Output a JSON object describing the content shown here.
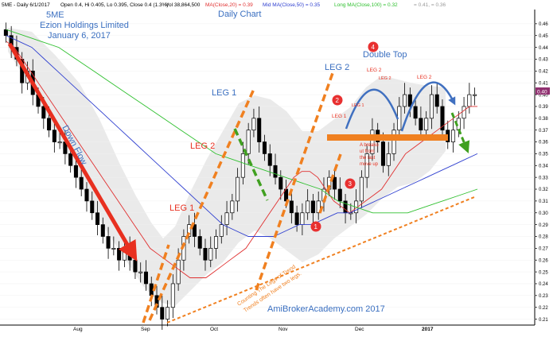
{
  "header": {
    "ticker": "5ME - Daily 6/1/2017",
    "ohlc": "Open 0.4, Hi 0.405, Lo 0.395, Close 0.4 (1.3%)",
    "vol": "Vol 38,864,500",
    "ma20": "MA(Close,20) = 0.39",
    "ma50": "Mid MA(Close,50) = 0.35",
    "ma100": "Long MA(Close,100) = 0.32",
    "bands": "= 0.41, = 0.36"
  },
  "titles": {
    "symbol": "5ME",
    "company": "Ezion Holdings Limited",
    "date": "January 6, 2017",
    "chart": "Daily Chart"
  },
  "annotations": {
    "down_flow": "Down Flow",
    "leg1_left": "LEG 1",
    "leg2_left": "LEG 2",
    "leg1_mid": "LEG 1",
    "leg2_right": "LEG 2",
    "double_top": "Double Top",
    "leg1_small": "LEG 1",
    "leg2_small_a": "LEG 2",
    "leg2_small_b": "LEG 2",
    "leg1_small_b": "LEG 1",
    "leg2_top_right": "LEG 2",
    "breakout": [
      "A breako",
      "ut from",
      "the last",
      "move up"
    ],
    "counting": [
      "Counting The Legs of Trend",
      "Trends often have two legs."
    ],
    "website": "AmiBrokerAcademy.com  2017",
    "circles": [
      "1",
      "2",
      "3",
      "4"
    ]
  },
  "colors": {
    "candle": "#000000",
    "ma20": "#e03030",
    "ma50": "#3040d0",
    "ma100": "#30c030",
    "band": "#d0d0d0",
    "orange": "#f08020",
    "green_arrow": "#40a020",
    "red_arrow": "#e83020",
    "blue_curve": "#4070c0",
    "price_tag": "#903070"
  },
  "chart_data": {
    "type": "candlestick",
    "title": "Daily Chart",
    "y_axis": {
      "ticks": [
        0.46,
        0.45,
        0.44,
        0.43,
        0.42,
        0.41,
        0.4,
        0.39,
        0.38,
        0.37,
        0.36,
        0.35,
        0.34,
        0.33,
        0.32,
        0.31,
        0.3,
        0.29,
        0.28,
        0.27,
        0.26,
        0.25,
        0.24,
        0.23,
        0.22,
        0.21
      ],
      "ylim": [
        0.205,
        0.47
      ],
      "current_price_tag": "0.40"
    },
    "x_axis": {
      "labels": [
        "Aug",
        "Sep",
        "Oct",
        "Nov",
        "Dec",
        "2017"
      ]
    },
    "close_path": [
      0.45,
      0.44,
      0.43,
      0.41,
      0.42,
      0.4,
      0.39,
      0.38,
      0.37,
      0.36,
      0.36,
      0.35,
      0.34,
      0.33,
      0.32,
      0.31,
      0.3,
      0.29,
      0.28,
      0.27,
      0.27,
      0.26,
      0.27,
      0.26,
      0.25,
      0.25,
      0.24,
      0.23,
      0.22,
      0.21,
      0.22,
      0.24,
      0.26,
      0.28,
      0.29,
      0.28,
      0.27,
      0.26,
      0.27,
      0.28,
      0.29,
      0.3,
      0.31,
      0.33,
      0.35,
      0.37,
      0.38,
      0.36,
      0.35,
      0.34,
      0.33,
      0.32,
      0.31,
      0.3,
      0.29,
      0.3,
      0.31,
      0.3,
      0.31,
      0.32,
      0.33,
      0.32,
      0.31,
      0.3,
      0.3,
      0.31,
      0.33,
      0.35,
      0.37,
      0.36,
      0.34,
      0.35,
      0.37,
      0.39,
      0.4,
      0.39,
      0.38,
      0.37,
      0.38,
      0.4,
      0.39,
      0.37,
      0.36,
      0.37,
      0.38,
      0.39,
      0.4,
      0.4
    ],
    "series": [
      {
        "name": "MA(Close,20)",
        "values": [
          0.445,
          0.44,
          0.43,
          0.42,
          0.41,
          0.4,
          0.39,
          0.38,
          0.37,
          0.36,
          0.35,
          0.34,
          0.33,
          0.32,
          0.31,
          0.3,
          0.29,
          0.28,
          0.27,
          0.265,
          0.26,
          0.255,
          0.25,
          0.245,
          0.245,
          0.245,
          0.25,
          0.255,
          0.26,
          0.265,
          0.27,
          0.28,
          0.29,
          0.3,
          0.31,
          0.32,
          0.33,
          0.335,
          0.335,
          0.33,
          0.32,
          0.31,
          0.305,
          0.3,
          0.305,
          0.31,
          0.315,
          0.32,
          0.33,
          0.34,
          0.35,
          0.355,
          0.36,
          0.365,
          0.37,
          0.375,
          0.38,
          0.385,
          0.39,
          0.39
        ]
      },
      {
        "name": "Mid MA(Close,50)",
        "values": [
          0.45,
          0.445,
          0.44,
          0.43,
          0.42,
          0.41,
          0.4,
          0.39,
          0.38,
          0.37,
          0.36,
          0.35,
          0.34,
          0.33,
          0.32,
          0.31,
          0.3,
          0.29,
          0.285,
          0.28,
          0.28,
          0.28,
          0.285,
          0.29,
          0.29,
          0.295,
          0.3,
          0.3,
          0.305,
          0.31,
          0.315,
          0.32,
          0.325,
          0.33,
          0.335,
          0.34,
          0.345,
          0.35
        ]
      },
      {
        "name": "Long MA(Close,100)",
        "values": [
          0.455,
          0.45,
          0.445,
          0.44,
          0.43,
          0.42,
          0.41,
          0.4,
          0.39,
          0.38,
          0.37,
          0.36,
          0.35,
          0.345,
          0.34,
          0.335,
          0.33,
          0.325,
          0.32,
          0.31,
          0.305,
          0.3,
          0.3,
          0.3,
          0.305,
          0.31,
          0.315,
          0.32
        ]
      }
    ],
    "support_level": 0.362
  }
}
